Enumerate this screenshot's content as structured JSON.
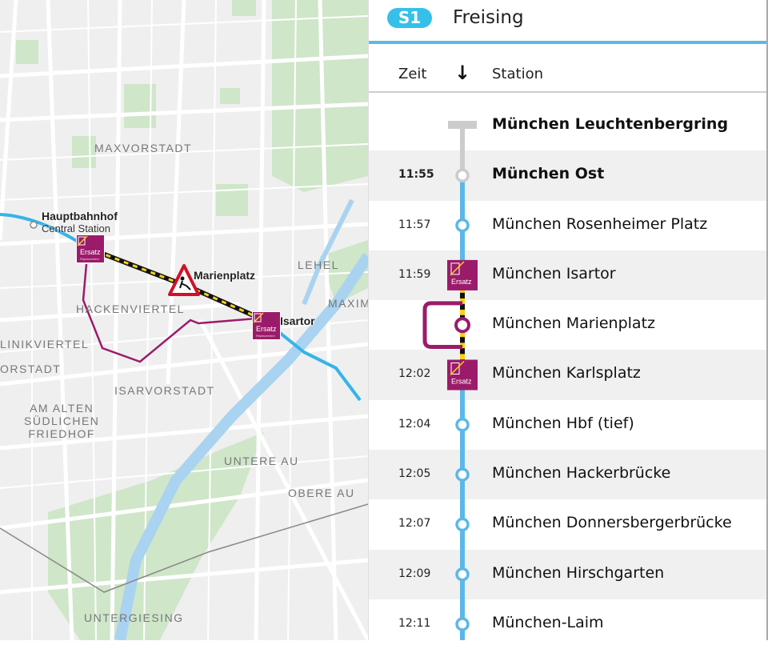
{
  "map": {
    "districts": [
      "MAXVORSTADT",
      "LEHEL",
      "MAXIM",
      "HACKENVIERTEL",
      "LINIKVIERTEL",
      "ORSTADT",
      "ISARVORSTADT",
      "AM ALTEN\nSÜDLICHEN\nFRIEDHOF",
      "UNTERE AU",
      "OBERE AU",
      "UNTERGIESING"
    ],
    "stations": {
      "hbf_title": "Hauptbahnhof",
      "hbf_subtitle": "Central Station",
      "marienplatz": "Marienplatz",
      "isartor": "Isartor"
    },
    "ersatz_label": "Ersatz",
    "ersatz_sub": "Replacement",
    "icons": [
      "construction-warning-icon",
      "replacement-bus-icon"
    ]
  },
  "header": {
    "line": "S1",
    "destination": "Freising",
    "line_color": "#35c0ea"
  },
  "columns": {
    "time": "Zeit",
    "direction_icon": "arrow-down-icon",
    "station": "Station"
  },
  "colors": {
    "line": "#5cb8e6",
    "replacement": "#9b1b6a",
    "inactive": "#cccccc",
    "construction": "#f7d117"
  },
  "stops": [
    {
      "time": "",
      "name": "München Leuchtenbergring",
      "bold": true,
      "state": "terminus-inactive"
    },
    {
      "time": "11:55",
      "name": "München Ost",
      "bold": true,
      "state": "inactive"
    },
    {
      "time": "11:57",
      "name": "München Rosenheimer Platz",
      "state": "normal"
    },
    {
      "time": "11:59",
      "name": "München Isartor",
      "state": "replacement"
    },
    {
      "time": "",
      "name": "München Marienplatz",
      "state": "closed"
    },
    {
      "time": "12:02",
      "name": "München Karlsplatz",
      "state": "replacement"
    },
    {
      "time": "12:04",
      "name": "München Hbf (tief)",
      "state": "normal"
    },
    {
      "time": "12:05",
      "name": "München Hackerbrücke",
      "state": "normal"
    },
    {
      "time": "12:07",
      "name": "München Donnersbergerbrücke",
      "state": "normal"
    },
    {
      "time": "12:09",
      "name": "München Hirschgarten",
      "state": "normal"
    },
    {
      "time": "12:11",
      "name": "München-Laim",
      "state": "normal"
    }
  ]
}
